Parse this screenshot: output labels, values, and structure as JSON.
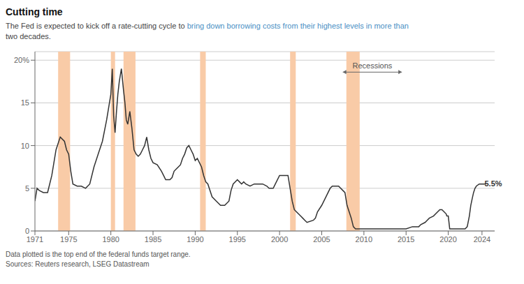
{
  "chart_data": {
    "type": "line",
    "title": "Cutting time",
    "subtitle": [
      "The Fed is expected to kick off a rate-cutting cycle to ",
      "bring down borrowing costs from their highest levels in more than",
      "two decades."
    ],
    "footnotes": [
      "Data plotted is the top end of the federal funds target range.",
      "Sources: Reuters research, LSEG Datastream"
    ],
    "color": "#333333",
    "grid": true,
    "recession_bands": [
      [
        1973.75,
        1975.17
      ],
      [
        1980.0,
        1980.5
      ],
      [
        1981.5,
        1982.92
      ],
      [
        1990.58,
        1991.25
      ],
      [
        2001.25,
        2001.92
      ],
      [
        2007.92,
        2009.5
      ]
    ],
    "recession_color": "#f9cba7",
    "annotations": [
      {
        "text": "5.5%",
        "x": 2024.3,
        "y": 5.5
      },
      {
        "text": "Recessions",
        "x": 2011.0,
        "y": 18.6,
        "arrow_x": [
          2007.5,
          2014.5
        ]
      }
    ],
    "xlim": [
      1971,
      2025.5
    ],
    "xticks": [
      1971,
      1975,
      1980,
      1985,
      1990,
      1995,
      2000,
      2005,
      2010,
      2015,
      2020,
      2024
    ],
    "ylim": [
      0,
      21
    ],
    "yticks": [
      0,
      5,
      10,
      15,
      {
        "value": 20,
        "label": "20%"
      }
    ],
    "x": [
      1971.0,
      1971.25,
      1971.5,
      1972.0,
      1972.5,
      1973.0,
      1973.5,
      1974.0,
      1974.5,
      1974.75,
      1975.0,
      1975.25,
      1975.5,
      1976.0,
      1976.5,
      1977.0,
      1977.5,
      1978.0,
      1978.5,
      1979.0,
      1979.5,
      1980.0,
      1980.17,
      1980.33,
      1980.5,
      1980.67,
      1980.83,
      1981.0,
      1981.25,
      1981.5,
      1981.67,
      1981.83,
      1982.0,
      1982.25,
      1982.5,
      1982.75,
      1983.0,
      1983.25,
      1983.5,
      1983.75,
      1984.0,
      1984.25,
      1984.5,
      1984.75,
      1985.0,
      1985.5,
      1986.0,
      1986.25,
      1986.5,
      1987.0,
      1987.25,
      1987.5,
      1987.75,
      1988.0,
      1988.25,
      1988.5,
      1988.75,
      1989.0,
      1989.25,
      1989.5,
      1989.75,
      1990.0,
      1990.25,
      1990.5,
      1990.75,
      1991.0,
      1991.25,
      1991.5,
      1992.0,
      1992.5,
      1993.0,
      1993.5,
      1994.0,
      1994.25,
      1994.5,
      1995.0,
      1995.25,
      1995.5,
      1995.75,
      1996.0,
      1996.5,
      1997.0,
      1997.5,
      1998.0,
      1998.5,
      1998.75,
      1999.0,
      1999.25,
      1999.5,
      2000.0,
      2000.5,
      2001.0,
      2001.25,
      2001.5,
      2001.75,
      2002.0,
      2002.25,
      2002.5,
      2002.75,
      2003.0,
      2003.25,
      2004.0,
      2004.25,
      2004.5,
      2005.0,
      2005.5,
      2006.0,
      2006.25,
      2006.5,
      2007.0,
      2007.5,
      2007.75,
      2008.0,
      2008.25,
      2008.5,
      2008.75,
      2009.0,
      2009.5,
      2010.0,
      2011.0,
      2012.0,
      2013.0,
      2014.0,
      2015.0,
      2015.75,
      2016.5,
      2016.75,
      2017.25,
      2017.5,
      2017.75,
      2018.25,
      2018.5,
      2018.75,
      2019.0,
      2019.25,
      2019.5,
      2019.75,
      2019.83,
      2020.0,
      2020.17,
      2020.5,
      2021.0,
      2021.5,
      2022.0,
      2022.25,
      2022.5,
      2022.67,
      2022.83,
      2023.0,
      2023.17,
      2023.33,
      2023.67,
      2024.0,
      2024.5
    ],
    "values": [
      3.5,
      5.0,
      4.75,
      4.5,
      4.5,
      6.5,
      9.5,
      11.0,
      10.5,
      9.5,
      9.0,
      7.0,
      5.5,
      5.25,
      5.25,
      5.0,
      5.5,
      7.5,
      9.0,
      10.5,
      13.0,
      16.0,
      19.0,
      13.5,
      11.5,
      14.0,
      16.0,
      17.5,
      19.0,
      16.5,
      15.0,
      13.0,
      12.5,
      14.0,
      12.0,
      9.5,
      9.0,
      8.75,
      9.0,
      9.5,
      10.0,
      11.0,
      9.5,
      8.5,
      8.0,
      7.75,
      7.0,
      6.5,
      6.0,
      6.0,
      6.25,
      7.0,
      7.25,
      7.5,
      7.75,
      8.5,
      9.0,
      9.75,
      10.0,
      9.5,
      9.0,
      8.25,
      8.5,
      8.0,
      7.5,
      6.5,
      5.75,
      5.5,
      4.0,
      3.5,
      3.0,
      3.0,
      3.5,
      4.75,
      5.5,
      6.0,
      5.75,
      5.5,
      5.75,
      5.5,
      5.25,
      5.5,
      5.5,
      5.5,
      5.25,
      5.0,
      5.0,
      5.0,
      5.5,
      6.5,
      6.5,
      6.5,
      5.0,
      3.5,
      2.5,
      2.25,
      2.0,
      1.75,
      1.5,
      1.25,
      1.0,
      1.25,
      1.5,
      2.25,
      3.0,
      4.0,
      5.0,
      5.25,
      5.25,
      5.25,
      4.75,
      4.5,
      3.0,
      2.25,
      1.5,
      0.5,
      0.25,
      0.25,
      0.25,
      0.25,
      0.25,
      0.25,
      0.25,
      0.25,
      0.5,
      0.5,
      0.75,
      1.0,
      1.25,
      1.5,
      1.75,
      2.0,
      2.25,
      2.5,
      2.5,
      2.25,
      2.0,
      1.75,
      1.75,
      0.25,
      0.25,
      0.25,
      0.25,
      0.25,
      0.5,
      1.75,
      3.0,
      3.75,
      4.5,
      5.0,
      5.25,
      5.5,
      5.5,
      5.5
    ]
  }
}
